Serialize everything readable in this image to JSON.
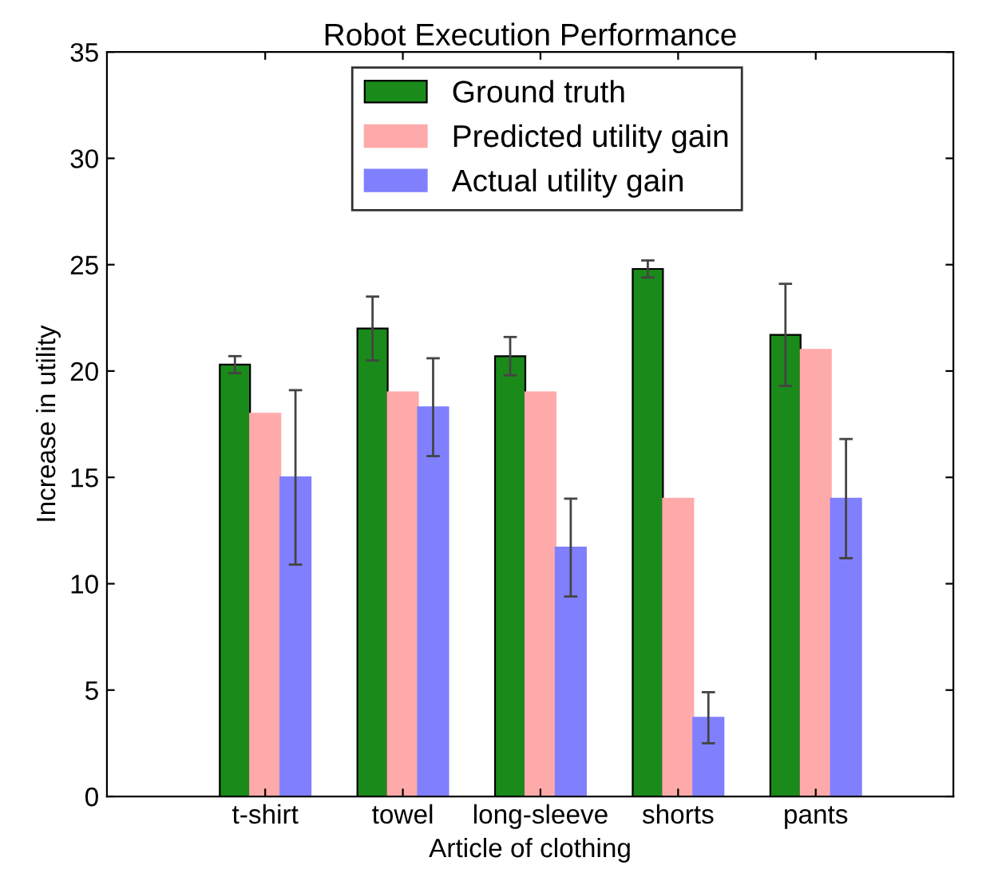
{
  "chart_data": {
    "type": "bar",
    "title": "Robot Execution Performance",
    "xlabel": "Article of clothing",
    "ylabel": "Increase in utility",
    "categories": [
      "t-shirt",
      "towel",
      "long-sleeve",
      "shorts",
      "pants"
    ],
    "series": [
      {
        "name": "Ground truth",
        "color": "#1a8a1a",
        "values": [
          20.3,
          22.0,
          20.7,
          24.8,
          21.7
        ],
        "errors": [
          0.4,
          1.5,
          0.9,
          0.4,
          2.4
        ]
      },
      {
        "name": "Predicted utility gain",
        "color": "#ffaaaa",
        "values": [
          18,
          19,
          19,
          14,
          21
        ]
      },
      {
        "name": "Actual utility gain",
        "color": "#8080ff",
        "values": [
          15,
          18.3,
          11.7,
          3.7,
          14
        ],
        "errors": [
          4.1,
          2.3,
          2.3,
          1.2,
          2.8
        ]
      }
    ],
    "ylim": [
      0,
      35
    ],
    "yticks": [
      0,
      5,
      10,
      15,
      20,
      25,
      30,
      35
    ],
    "grid": false,
    "legend": "top"
  }
}
